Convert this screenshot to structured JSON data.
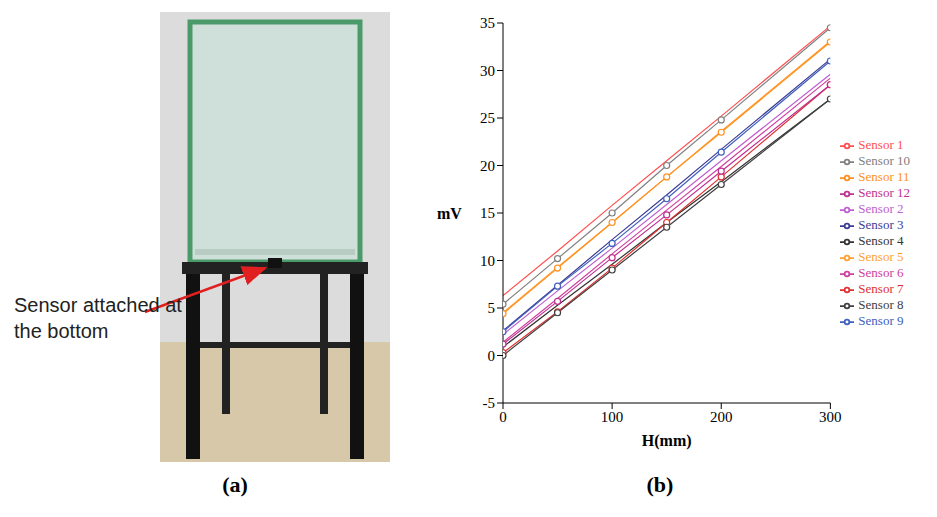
{
  "panels": [
    {
      "label": "(a)",
      "annotation": "Sensor attached at the bottom"
    },
    {
      "label": "(b)"
    }
  ],
  "chart_data": {
    "type": "line",
    "x": [
      0,
      50,
      100,
      150,
      200,
      300
    ],
    "x_label": "H(mm)",
    "y_label": "mV",
    "xlim": [
      0,
      300
    ],
    "xticks": [
      0,
      100,
      200,
      300
    ],
    "ylim": [
      -5,
      35
    ],
    "yticks": [
      -5,
      0,
      5,
      10,
      15,
      20,
      25,
      30,
      35
    ],
    "legend": "right",
    "series": [
      {
        "name": "Sensor 1",
        "color": "#ff5050",
        "values": [
          6.3,
          11.0,
          15.8,
          20.5,
          25.2,
          34.7
        ]
      },
      {
        "name": "Sensor 2",
        "color": "#c060d0",
        "values": [
          2.2,
          6.8,
          11.3,
          15.9,
          20.5,
          29.6
        ]
      },
      {
        "name": "Sensor 3",
        "color": "#3c3c96",
        "values": [
          2.6,
          7.4,
          12.2,
          16.9,
          21.7,
          31.2
        ]
      },
      {
        "name": "Sensor 4",
        "color": "#333333",
        "values": [
          0.9,
          5.3,
          9.6,
          14.0,
          18.3,
          27.0
        ]
      },
      {
        "name": "Sensor 5",
        "color": "#ffa030",
        "values": [
          4.5,
          9.3,
          14.0,
          18.8,
          23.6,
          33.1
        ]
      },
      {
        "name": "Sensor 6",
        "color": "#d040a0",
        "values": [
          1.4,
          6.0,
          10.7,
          15.3,
          19.9,
          29.2
        ]
      },
      {
        "name": "Sensor 7",
        "color": "#e03030",
        "marker": "circle",
        "values": [
          0.3,
          4.6,
          9.2,
          14.0,
          18.8,
          28.5
        ]
      },
      {
        "name": "Sensor 8",
        "color": "#404040",
        "marker": "circle",
        "values": [
          0.0,
          4.5,
          9.0,
          13.5,
          18.0,
          27.0
        ]
      },
      {
        "name": "Sensor 9",
        "color": "#4060c0",
        "marker": "circle",
        "values": [
          2.5,
          7.3,
          11.8,
          16.5,
          21.4,
          31.0
        ]
      },
      {
        "name": "Sensor 10",
        "color": "#808080",
        "marker": "circle",
        "values": [
          5.4,
          10.2,
          15.0,
          20.0,
          24.8,
          34.5
        ]
      },
      {
        "name": "Sensor 11",
        "color": "#ff9020",
        "marker": "circle",
        "values": [
          4.4,
          9.2,
          14.0,
          18.8,
          23.5,
          33.0
        ]
      },
      {
        "name": "Sensor 12",
        "color": "#c03090",
        "marker": "circle",
        "values": [
          1.2,
          5.7,
          10.3,
          14.8,
          19.4,
          28.5
        ]
      }
    ]
  }
}
